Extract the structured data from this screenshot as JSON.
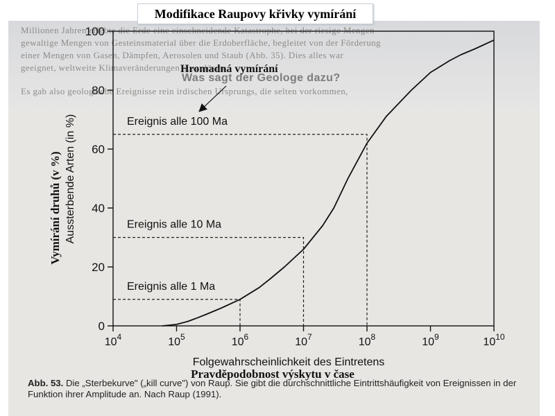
{
  "slide_title": "Modifikace Raupovy křivky vymírání",
  "background_lines": [
    "Millionen Jahren erlebte die Erde eine einschneidende Katastrophe, bei der riesige Mengen",
    "gewaltige Mengen von Gesteinsmaterial über die Erdoberfläche, begleitet von der Förderung",
    "einer Mengen von Gasen, Dämpfen, Aerosolen und Staub (Abb. 35). Dies alles war",
    "geeignet, weltweite Klimaveränderungen auszulösen.",
    "Was sagt der Geologe dazu?",
    "Es gab also geologische Ereignisse rein irdischen Ursprungs, die selten vorkommen,"
  ],
  "chart_data": {
    "type": "line",
    "title": "",
    "xlabel": "Folgewahrscheinlichkeit des Eintretens",
    "xlabel_overlay": "Pravděpodobnost výskytu v čase",
    "ylabel": "Aussterbende Arten (in %)",
    "ylabel_overlay": "Vymírání druhů (v %)",
    "x_scale": "log",
    "xlim": [
      10000,
      10000000000
    ],
    "ylim": [
      0,
      100
    ],
    "x_ticks": [
      {
        "base": "10",
        "exp": "4",
        "value": 10000
      },
      {
        "base": "10",
        "exp": "5",
        "value": 100000
      },
      {
        "base": "10",
        "exp": "6",
        "value": 1000000
      },
      {
        "base": "10",
        "exp": "7",
        "value": 10000000
      },
      {
        "base": "10",
        "exp": "8",
        "value": 100000000
      },
      {
        "base": "10",
        "exp": "9",
        "value": 1000000000
      },
      {
        "base": "10",
        "exp": "10",
        "value": 10000000000
      }
    ],
    "y_ticks": [
      "0",
      "20",
      "40",
      "60",
      "80",
      "100"
    ],
    "y_tick_values": [
      0,
      20,
      40,
      60,
      80,
      100
    ],
    "series": [
      {
        "x": [
          60000,
          100000,
          150000,
          200000,
          300000,
          500000,
          1000000,
          2000000,
          3000000,
          5000000,
          10000000,
          20000000,
          30000000,
          50000000,
          100000000,
          200000000,
          300000000,
          500000000,
          1000000000,
          2000000000,
          3000000000,
          5000000000,
          10000000000
        ],
        "y": [
          0,
          0.5,
          1.5,
          2.5,
          4,
          6,
          9,
          13,
          16,
          20,
          26,
          34,
          40,
          50,
          62,
          71,
          75,
          80,
          86,
          90,
          92,
          94,
          97
        ]
      }
    ],
    "annotations": [
      {
        "label": "Ereignis alle 1 Ma",
        "x": 1000000,
        "y": 9
      },
      {
        "label": "Ereignis alle 10 Ma",
        "x": 10000000,
        "y": 30
      },
      {
        "label": "Ereignis alle 100 Ma",
        "x": 100000000,
        "y": 65
      }
    ],
    "arrow_label": "Hromadná vymírání",
    "grid": false
  },
  "caption": {
    "figure": "Abb. 53.",
    "lead": "Die „Sterbekurve\" („kill curve\") von Raup.",
    "rest": "Sie gibt die durchschnittliche Eintrittshäufigkeit von Ereignissen in der Funktion ihrer Amplitude an. Nach Raup (1991)."
  }
}
